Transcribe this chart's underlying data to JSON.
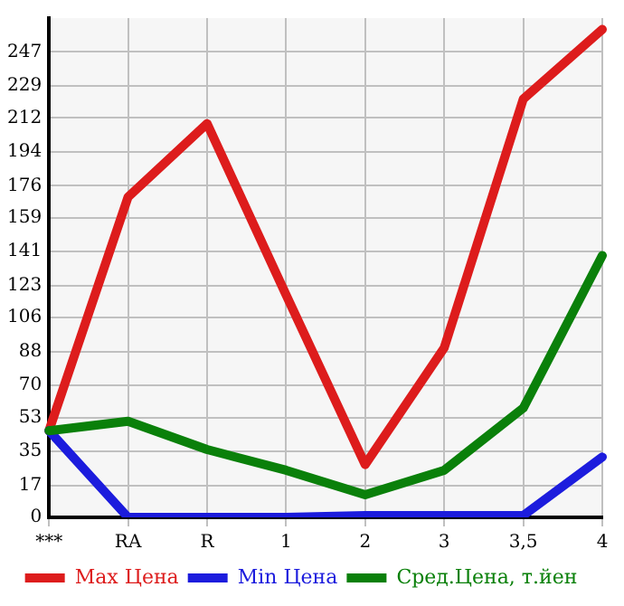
{
  "chart_data": {
    "type": "line",
    "categories": [
      "***",
      "RA",
      "R",
      "1",
      "2",
      "3",
      "3,5",
      "4"
    ],
    "series": [
      {
        "name": "Max Цена",
        "color": "#dd1c1c",
        "values": [
          46,
          170,
          209,
          118,
          28,
          90,
          222,
          259
        ]
      },
      {
        "name": "Min Цена",
        "color": "#1c1cdd",
        "values": [
          46,
          0,
          0,
          0,
          1,
          1,
          1,
          32
        ]
      },
      {
        "name": "Сред.Цена, т.йен",
        "color": "#0a800a",
        "values": [
          46,
          51,
          36,
          25,
          12,
          25,
          58,
          139
        ]
      }
    ],
    "ylim": [
      0,
      265
    ],
    "yticks": [
      0,
      17,
      35,
      53,
      70,
      88,
      106,
      123,
      141,
      159,
      176,
      194,
      212,
      229,
      247
    ],
    "grid": true,
    "legend": "bottom",
    "marker": "none",
    "line_style": "solid"
  }
}
